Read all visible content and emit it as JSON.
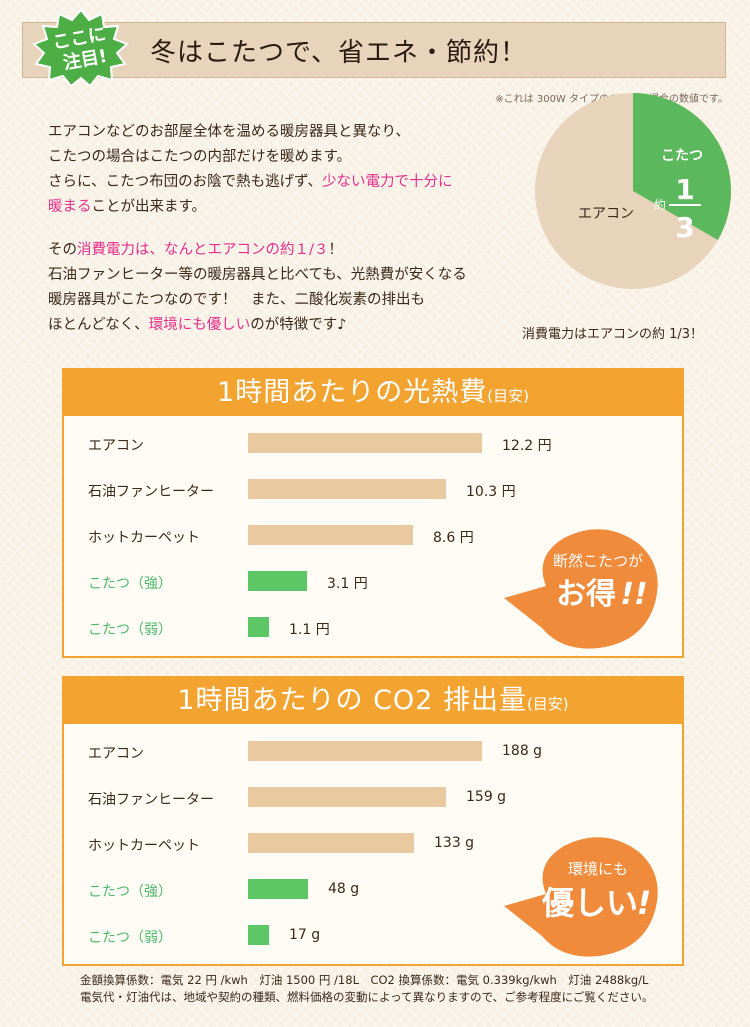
{
  "header": {
    "badge_line1": "ここに",
    "badge_line2": "注目!",
    "title": "冬はこたつで、省エネ・節約！",
    "note": "※これは 300W タイプのこたつの場合の数値です。"
  },
  "intro": {
    "p1_l1": "エアコンなどのお部屋全体を温める暖房器具と異なり、",
    "p1_l2": "こたつの場合はこたつの内部だけを暖めます。",
    "p1_l3a": "さらに、こたつ布団のお陰で熱も逃げず、",
    "p1_l3b": "少ない電力で十分に",
    "p1_l4a": "暖まる",
    "p1_l4b": "ことが出来ます。",
    "p2_l1a": "その",
    "p2_l1b": "消費電力は、なんとエアコンの約１/３",
    "p2_l1c": "！",
    "p2_l2": "石油ファンヒーター等の暖房器具と比べても、光熱費が安くなる",
    "p2_l3": "暖房器具がこたつなのです！　また、二酸化炭素の排出も",
    "p2_l4a": "ほとんどなく、",
    "p2_l4b": "環境にも優しい",
    "p2_l4c": "のが特徴です♪"
  },
  "pie": {
    "large_label": "エアコン",
    "small_label": "こたつ",
    "approx": "約",
    "num": "1",
    "den": "3",
    "fraction": 0.3333,
    "caption": "消費電力はエアコンの約 1/3！",
    "colors": {
      "large": "#e8d3bb",
      "small": "#5cb85c"
    }
  },
  "charts": {
    "cost": {
      "title": "1時間あたりの光熱費",
      "title_small": "(目安)",
      "burst_line1": "断然こたつが",
      "burst_line2": "お得",
      "burst_mark": "!!"
    },
    "co2": {
      "title": "1時間あたりの CO2 排出量",
      "title_small": "(目安)",
      "burst_line1": "環境にも",
      "burst_line2": "優しい",
      "burst_mark": "!"
    }
  },
  "chart_data": [
    {
      "type": "bar",
      "title": "1時間あたりの光熱費(目安)",
      "categories": [
        "エアコン",
        "石油ファンヒーター",
        "ホットカーペット",
        "こたつ（強）",
        "こたつ（弱）"
      ],
      "values": [
        12.2,
        10.3,
        8.6,
        3.1,
        1.1
      ],
      "value_labels": [
        "12.2 円",
        "10.3 円",
        "8.6 円",
        "3.1 円",
        "1.1 円"
      ],
      "highlight": [
        false,
        false,
        false,
        true,
        true
      ],
      "max": 12.2
    },
    {
      "type": "bar",
      "title": "1時間あたりの CO2 排出量(目安)",
      "categories": [
        "エアコン",
        "石油ファンヒーター",
        "ホットカーペット",
        "こたつ（強）",
        "こたつ（弱）"
      ],
      "values": [
        188,
        159,
        133,
        48,
        17
      ],
      "value_labels": [
        "188 g",
        "159 g",
        "133 g",
        "48 g",
        "17 g"
      ],
      "highlight": [
        false,
        false,
        false,
        true,
        true
      ],
      "max": 188
    }
  ],
  "colors": {
    "bar_normal": "#e9c9a0",
    "bar_highlight": "#5dc766",
    "accent_orange": "#f2a330",
    "burst": "#f08b3c",
    "pink": "#e62e8a",
    "badge_green": "#4cae44"
  },
  "footer": {
    "line1": "金額換算係数：電気 22 円 /kwh　灯油 1500 円 /18L　CO2 換算係数：電気 0.339kg/kwh　灯油 2488kg/L",
    "line2": "電気代・灯油代は、地域や契約の種類、燃料価格の変動によって異なりますので、ご参考程度にご覧ください。"
  }
}
